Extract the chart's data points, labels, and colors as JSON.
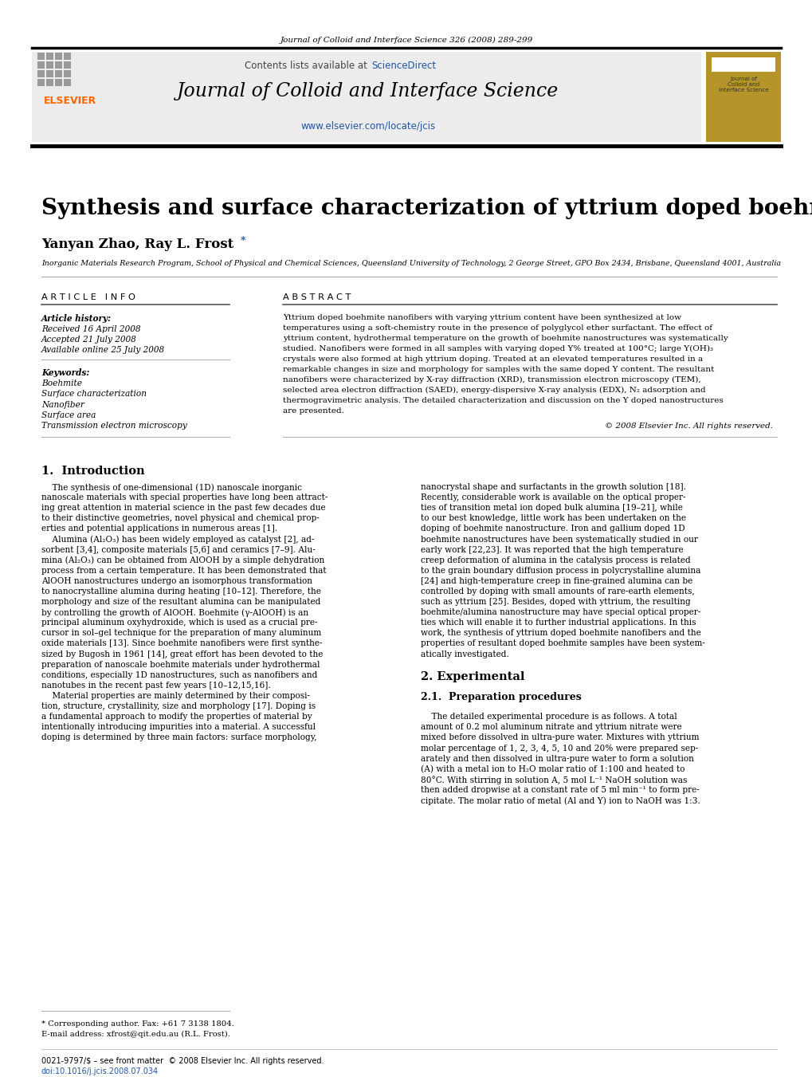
{
  "page_bg": "#ffffff",
  "journal_ref": "Journal of Colloid and Interface Science 326 (2008) 289-299",
  "header_bg": "#ececec",
  "contents_text": "Contents lists available at ",
  "sciencedirect_text": "ScienceDirect",
  "sciencedirect_color": "#2155a0",
  "journal_title": "Journal of Colloid and Interface Science",
  "journal_url": "www.elsevier.com/locate/jcis",
  "journal_url_color": "#2155a0",
  "elsevier_color": "#ff6600",
  "gold_box_color": "#b5952a",
  "paper_title": "Synthesis and surface characterization of yttrium doped boehmite nanofibers",
  "authors": "Yanyan Zhao, Ray L. Frost",
  "asterisk": "*",
  "affiliation": "Inorganic Materials Research Program, School of Physical and Chemical Sciences, Queensland University of Technology, 2 George Street, GPO Box 2434, Brisbane, Queensland 4001, Australia",
  "article_info_header": "A R T I C L E   I N F O",
  "abstract_header": "A B S T R A C T",
  "article_history_label": "Article history:",
  "received": "Received 16 April 2008",
  "accepted": "Accepted 21 July 2008",
  "available": "Available online 25 July 2008",
  "keywords_label": "Keywords:",
  "keywords": [
    "Boehmite",
    "Surface characterization",
    "Nanofiber",
    "Surface area",
    "Transmission electron microscopy"
  ],
  "abstract_lines": [
    "Yttrium doped boehmite nanofibers with varying yttrium content have been synthesized at low",
    "temperatures using a soft-chemistry route in the presence of polyglycol ether surfactant. The effect of",
    "yttrium content, hydrothermal temperature on the growth of boehmite nanostructures was systematically",
    "studied. Nanofibers were formed in all samples with varying doped Y% treated at 100°C; large Y(OH)₃",
    "crystals were also formed at high yttrium doping. Treated at an elevated temperatures resulted in a",
    "remarkable changes in size and morphology for samples with the same doped Y content. The resultant",
    "nanofibers were characterized by X-ray diffraction (XRD), transmission electron microscopy (TEM),",
    "selected area electron diffraction (SAED), energy-dispersive X-ray analysis (EDX), N₂ adsorption and",
    "thermogravimetric analysis. The detailed characterization and discussion on the Y doped nanostructures",
    "are presented."
  ],
  "copyright": "© 2008 Elsevier Inc. All rights reserved.",
  "section1_title": "1.  Introduction",
  "intro_col1_lines": [
    "    The synthesis of one-dimensional (1D) nanoscale inorganic",
    "nanoscale materials with special properties have long been attract-",
    "ing great attention in material science in the past few decades due",
    "to their distinctive geometries, novel physical and chemical prop-",
    "erties and potential applications in numerous areas [1].",
    "    Alumina (Al₂O₃) has been widely employed as catalyst [2], ad-",
    "sorbent [3,4], composite materials [5,6] and ceramics [7–9]. Alu-",
    "mina (Al₂O₃) can be obtained from AlOOH by a simple dehydration",
    "process from a certain temperature. It has been demonstrated that",
    "AlOOH nanostructures undergo an isomorphous transformation",
    "to nanocrystalline alumina during heating [10–12]. Therefore, the",
    "morphology and size of the resultant alumina can be manipulated",
    "by controlling the growth of AlOOH. Boehmite (γ-AlOOH) is an",
    "principal aluminum oxyhydroxide, which is used as a crucial pre-",
    "cursor in sol–gel technique for the preparation of many aluminum",
    "oxide materials [13]. Since boehmite nanofibers were first synthe-",
    "sized by Bugosh in 1961 [14], great effort has been devoted to the",
    "preparation of nanoscale boehmite materials under hydrothermal",
    "conditions, especially 1D nanostructures, such as nanofibers and",
    "nanotubes in the recent past few years [10–12,15,16].",
    "    Material properties are mainly determined by their composi-",
    "tion, structure, crystallinity, size and morphology [17]. Doping is",
    "a fundamental approach to modify the properties of material by",
    "intentionally introducing impurities into a material. A successful",
    "doping is determined by three main factors: surface morphology,"
  ],
  "intro_col2_lines": [
    "nanocrystal shape and surfactants in the growth solution [18].",
    "Recently, considerable work is available on the optical proper-",
    "ties of transition metal ion doped bulk alumina [19–21], while",
    "to our best knowledge, little work has been undertaken on the",
    "doping of boehmite nanostructure. Iron and gallium doped 1D",
    "boehmite nanostructures have been systematically studied in our",
    "early work [22,23]. It was reported that the high temperature",
    "creep deformation of alumina in the catalysis process is related",
    "to the grain boundary diffusion process in polycrystalline alumina",
    "[24] and high-temperature creep in fine-grained alumina can be",
    "controlled by doping with small amounts of rare-earth elements,",
    "such as yttrium [25]. Besides, doped with yttrium, the resulting",
    "boehmite/alumina nanostructure may have special optical proper-",
    "ties which will enable it to further industrial applications. In this",
    "work, the synthesis of yttrium doped boehmite nanofibers and the",
    "properties of resultant doped boehmite samples have been system-",
    "atically investigated.",
    "",
    "2. Experimental",
    "",
    "2.1.  Preparation procedures",
    "",
    "    The detailed experimental procedure is as follows. A total",
    "amount of 0.2 mol aluminum nitrate and yttrium nitrate were",
    "mixed before dissolved in ultra-pure water. Mixtures with yttrium",
    "molar percentage of 1, 2, 3, 4, 5, 10 and 20% were prepared sep-",
    "arately and then dissolved in ultra-pure water to form a solution",
    "(A) with a metal ion to H₂O molar ratio of 1:100 and heated to",
    "80°C. With stirring in solution A, 5 mol L⁻¹ NaOH solution was",
    "then added dropwise at a constant rate of 5 ml min⁻¹ to form pre-",
    "cipitate. The molar ratio of metal (Al and Y) ion to NaOH was 1:3."
  ],
  "col2_bold_lines": [
    "2. Experimental",
    "2.1.  Preparation procedures"
  ],
  "col2_large_lines": [
    "2. Experimental"
  ],
  "col2_medium_lines": [
    "2.1.  Preparation procedures"
  ],
  "footnote_corresponding": "* Corresponding author. Fax: +61 7 3138 1804.",
  "footnote_email": "E-mail address: xfrost@qit.edu.au (R.L. Frost).",
  "footer_issn": "0021-9797/$ – see front matter  © 2008 Elsevier Inc. All rights reserved.",
  "footer_doi": "doi:10.1016/j.jcis.2008.07.034"
}
